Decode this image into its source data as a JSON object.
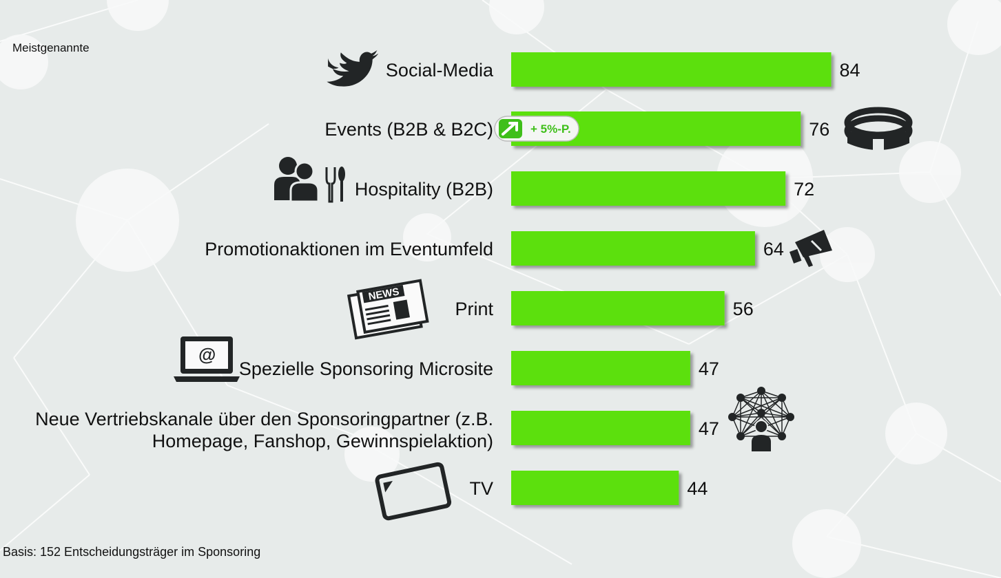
{
  "header": {
    "kicker": "Meistgenannte"
  },
  "footer": {
    "base_note": "Basis: 152 Entscheidungsträger im Sponsoring"
  },
  "chart_data": {
    "type": "bar",
    "orientation": "horizontal",
    "categories": [
      "Social-Media",
      "Events (B2B & B2C)",
      "Hospitality (B2B)",
      "Promotionaktionen im Eventumfeld",
      "Print",
      "Spezielle Sponsoring Microsite",
      "Neue Vertriebskanale über den Sponsoringpartner (z.B.|Homepage, Fanshop, Gewinnspielaktion)",
      "TV"
    ],
    "values": [
      84,
      76,
      72,
      64,
      56,
      47,
      47,
      44
    ],
    "icons": [
      "twitter-icon",
      "stadium-icon",
      "people-cutlery-icon",
      "megaphone-icon",
      "newspaper-icon",
      "laptop-at-icon",
      "network-people-icon",
      "tablet-icon"
    ],
    "badge": {
      "category": "Events (B2B & B2C)",
      "text": "+ 5%-P."
    },
    "bar_color": "#5ce00f",
    "grid": false,
    "legend": "none"
  }
}
